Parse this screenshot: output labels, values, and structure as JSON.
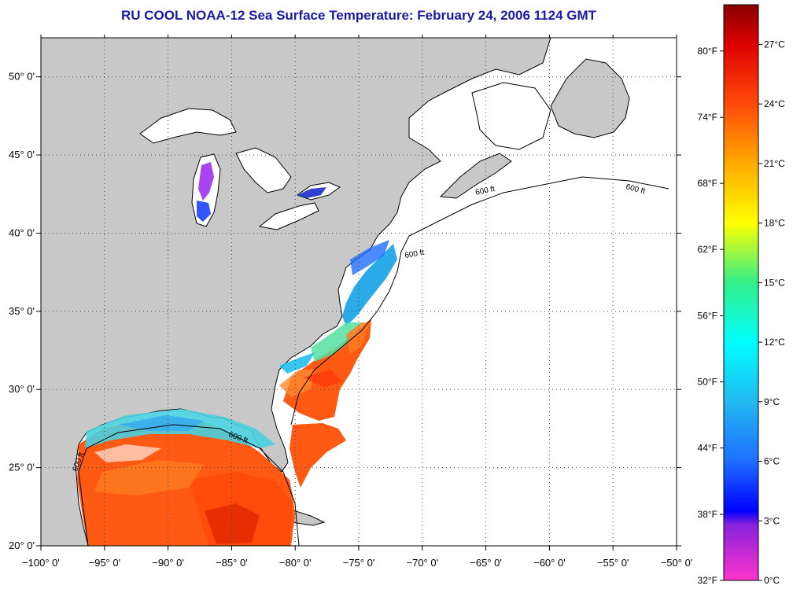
{
  "title": "RU COOL  NOAA-12  Sea Surface Temperature:  February 24, 2006 1124 GMT",
  "map": {
    "lon_range": [
      -100,
      -50
    ],
    "lat_range": [
      20,
      52.5
    ],
    "lon_ticks": [
      {
        "value": -100,
        "label": "−100° 0'"
      },
      {
        "value": -95,
        "label": "−95° 0'"
      },
      {
        "value": -90,
        "label": "−90° 0'"
      },
      {
        "value": -85,
        "label": "−85° 0'"
      },
      {
        "value": -80,
        "label": "−80° 0'"
      },
      {
        "value": -75,
        "label": "−75° 0'"
      },
      {
        "value": -70,
        "label": "−70° 0'"
      },
      {
        "value": -65,
        "label": "−65° 0'"
      },
      {
        "value": -60,
        "label": "−60° 0'"
      },
      {
        "value": -55,
        "label": "−55° 0'"
      },
      {
        "value": -50,
        "label": "−50° 0'"
      }
    ],
    "lat_ticks": [
      {
        "value": 20,
        "label": "20° 0'"
      },
      {
        "value": 25,
        "label": "25° 0'"
      },
      {
        "value": 30,
        "label": "30° 0'"
      },
      {
        "value": 35,
        "label": "35° 0'"
      },
      {
        "value": 40,
        "label": "40° 0'"
      },
      {
        "value": 45,
        "label": "45° 0'"
      },
      {
        "value": 50,
        "label": "50° 0'"
      }
    ],
    "grid": "dotted",
    "contour_label": "600 ft",
    "colors": {
      "land": "#c8c8c8",
      "water": "#ffffff",
      "coast": "#000000"
    }
  },
  "colorbar": {
    "range_c": [
      0,
      29
    ],
    "celsius_labels": [
      {
        "value": 0,
        "label": "0°C"
      },
      {
        "value": 3,
        "label": "3°C"
      },
      {
        "value": 6,
        "label": "6°C"
      },
      {
        "value": 9,
        "label": "9°C"
      },
      {
        "value": 12,
        "label": "12°C"
      },
      {
        "value": 15,
        "label": "15°C"
      },
      {
        "value": 18,
        "label": "18°C"
      },
      {
        "value": 21,
        "label": "21°C"
      },
      {
        "value": 24,
        "label": "24°C"
      },
      {
        "value": 27,
        "label": "27°C"
      }
    ],
    "fahrenheit_labels": [
      {
        "value": 0,
        "label": "32°F"
      },
      {
        "value": 3.33,
        "label": "38°F"
      },
      {
        "value": 6.67,
        "label": "44°F"
      },
      {
        "value": 10,
        "label": "50°F"
      },
      {
        "value": 13.33,
        "label": "56°F"
      },
      {
        "value": 16.67,
        "label": "62°F"
      },
      {
        "value": 20,
        "label": "68°F"
      },
      {
        "value": 23.33,
        "label": "74°F"
      },
      {
        "value": 26.67,
        "label": "80°F"
      }
    ],
    "stops": [
      {
        "value": 0,
        "color": "#ff33cc"
      },
      {
        "value": 2.8,
        "color": "#8822dd"
      },
      {
        "value": 3.5,
        "color": "#0000ff"
      },
      {
        "value": 6,
        "color": "#1e6eff"
      },
      {
        "value": 9,
        "color": "#22b8f0"
      },
      {
        "value": 12,
        "color": "#00ffff"
      },
      {
        "value": 15,
        "color": "#33ee88"
      },
      {
        "value": 18,
        "color": "#ffff00"
      },
      {
        "value": 21,
        "color": "#ffaa00"
      },
      {
        "value": 24,
        "color": "#ff4a0a"
      },
      {
        "value": 27,
        "color": "#dd0000"
      },
      {
        "value": 29,
        "color": "#880000"
      }
    ]
  }
}
